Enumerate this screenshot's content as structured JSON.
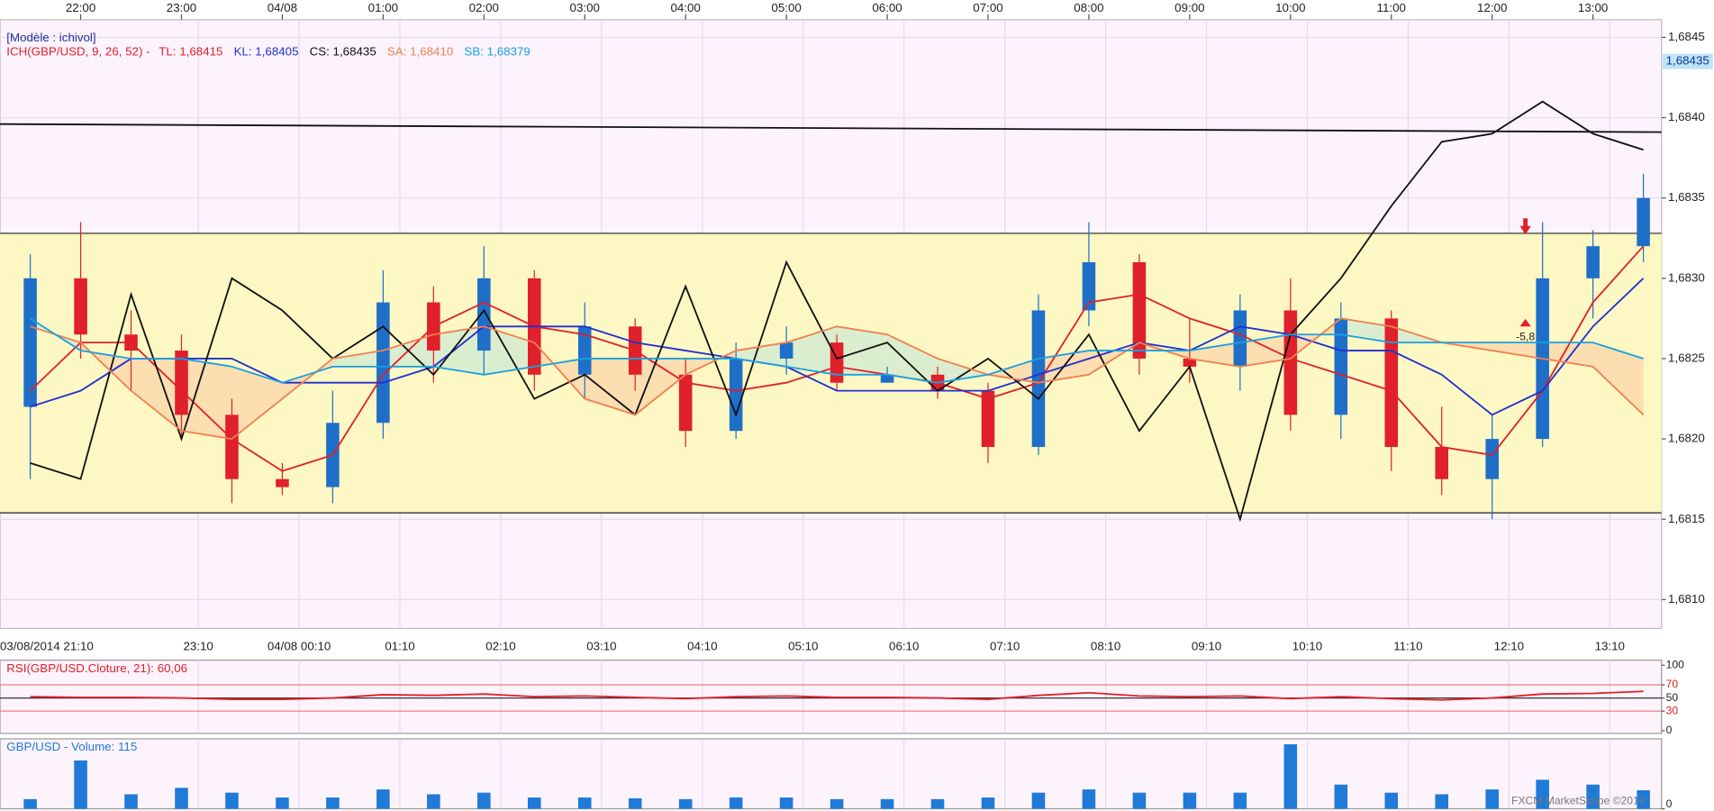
{
  "chart_data": [
    {
      "type": "candlestick",
      "model_label": "[Modèle : ichivol]",
      "title": "ICH(GBP/USD, 9, 26, 52) -",
      "watermark": "FXCM MarketScope ©2014",
      "x": [
        21.5,
        22,
        22.5,
        23,
        23.5,
        24,
        24.5,
        25,
        25.5,
        26,
        26.5,
        27,
        27.5,
        28,
        28.5,
        29,
        29.5,
        30,
        30.5,
        31,
        31.5,
        32,
        32.5,
        33,
        33.5,
        34,
        34.5,
        35,
        35.5,
        36,
        36.5,
        37,
        37.5
      ],
      "xlim": [
        21.2,
        37.68
      ],
      "ylim": [
        1.68082,
        1.68461
      ],
      "up_color": "#1f6fc8",
      "down_color": "#e0202a",
      "ohlc": [
        [
          1.6822,
          1.68315,
          1.68175,
          1.683
        ],
        [
          1.683,
          1.68335,
          1.6825,
          1.68265
        ],
        [
          1.68265,
          1.6828,
          1.6823,
          1.68255
        ],
        [
          1.68255,
          1.68265,
          1.682,
          1.68215
        ],
        [
          1.68215,
          1.68225,
          1.6816,
          1.68175
        ],
        [
          1.68175,
          1.68185,
          1.68165,
          1.6817
        ],
        [
          1.6817,
          1.6823,
          1.6816,
          1.6821
        ],
        [
          1.6821,
          1.68305,
          1.682,
          1.68285
        ],
        [
          1.68285,
          1.68295,
          1.68235,
          1.68255
        ],
        [
          1.68255,
          1.6832,
          1.6824,
          1.683
        ],
        [
          1.683,
          1.68305,
          1.6823,
          1.6824
        ],
        [
          1.6824,
          1.68285,
          1.68225,
          1.6827
        ],
        [
          1.6827,
          1.68275,
          1.6823,
          1.6824
        ],
        [
          1.6824,
          1.6825,
          1.68195,
          1.68205
        ],
        [
          1.68205,
          1.6826,
          1.682,
          1.6825
        ],
        [
          1.6825,
          1.6827,
          1.6824,
          1.6826
        ],
        [
          1.6826,
          1.68265,
          1.6823,
          1.68235
        ],
        [
          1.68235,
          1.68245,
          1.68235,
          1.6824
        ],
        [
          1.6824,
          1.68245,
          1.68225,
          1.6823
        ],
        [
          1.6823,
          1.68235,
          1.68185,
          1.68195
        ],
        [
          1.68195,
          1.6829,
          1.6819,
          1.6828
        ],
        [
          1.6828,
          1.68335,
          1.6827,
          1.6831
        ],
        [
          1.6831,
          1.68315,
          1.6824,
          1.6825
        ],
        [
          1.6825,
          1.68275,
          1.68235,
          1.68245
        ],
        [
          1.68245,
          1.6829,
          1.6823,
          1.6828
        ],
        [
          1.6828,
          1.683,
          1.68205,
          1.68215
        ],
        [
          1.68215,
          1.68285,
          1.682,
          1.68275
        ],
        [
          1.68275,
          1.6828,
          1.6818,
          1.68195
        ],
        [
          1.68195,
          1.6822,
          1.68165,
          1.68175
        ],
        [
          1.68175,
          1.68215,
          1.6815,
          1.682
        ],
        [
          1.682,
          1.68335,
          1.68195,
          1.683
        ],
        [
          1.683,
          1.6833,
          1.68275,
          1.6832
        ],
        [
          1.6832,
          1.68365,
          1.6831,
          1.6835
        ]
      ],
      "series": [
        {
          "name": "TL: 1,68415",
          "color": "#e0202a",
          "values": [
            1.6823,
            1.6826,
            1.6826,
            1.6823,
            1.682,
            1.6818,
            1.6819,
            1.6824,
            1.6827,
            1.68285,
            1.6827,
            1.68265,
            1.68255,
            1.68235,
            1.6823,
            1.68235,
            1.68245,
            1.6824,
            1.68235,
            1.68225,
            1.68235,
            1.68285,
            1.6829,
            1.68275,
            1.68265,
            1.6825,
            1.6824,
            1.6823,
            1.68195,
            1.6819,
            1.6823,
            1.68285,
            1.6832
          ]
        },
        {
          "name": "KL: 1,68405",
          "color": "#2030d0",
          "values": [
            1.6822,
            1.6823,
            1.6825,
            1.6825,
            1.6825,
            1.68235,
            1.68235,
            1.68235,
            1.68245,
            1.6827,
            1.6827,
            1.6827,
            1.6826,
            1.68255,
            1.6825,
            1.68245,
            1.6823,
            1.6823,
            1.6823,
            1.6823,
            1.6824,
            1.6825,
            1.6826,
            1.68255,
            1.6827,
            1.68265,
            1.68255,
            1.68255,
            1.6824,
            1.68215,
            1.6823,
            1.6827,
            1.683
          ]
        },
        {
          "name": "CS: 1,68435",
          "color": "#111111",
          "values": [
            1.68185,
            1.68175,
            1.6829,
            1.682,
            1.683,
            1.6828,
            1.6825,
            1.6827,
            1.6824,
            1.6828,
            1.68225,
            1.6824,
            1.68215,
            1.68295,
            1.68215,
            1.6831,
            1.6825,
            1.6826,
            1.6823,
            1.6825,
            1.68225,
            1.68265,
            1.68205,
            1.68245,
            1.6815,
            1.68265,
            1.683,
            1.68345,
            1.68385,
            1.6839,
            1.6841,
            1.6839,
            1.6838
          ]
        },
        {
          "name": "SA: 1,68410",
          "color": "#f08050",
          "values": [
            1.6827,
            1.6826,
            1.6823,
            1.68205,
            1.682,
            1.68225,
            1.6825,
            1.68255,
            1.68265,
            1.6827,
            1.6826,
            1.68225,
            1.68215,
            1.6824,
            1.68255,
            1.6826,
            1.6827,
            1.68265,
            1.6825,
            1.6824,
            1.68235,
            1.6824,
            1.6826,
            1.6825,
            1.68245,
            1.6825,
            1.68275,
            1.6827,
            1.6826,
            1.68255,
            1.6825,
            1.68245,
            1.68215
          ]
        },
        {
          "name": "SB: 1,68379",
          "color": "#1aa0e0",
          "values": [
            1.68275,
            1.68255,
            1.6825,
            1.6825,
            1.68245,
            1.68235,
            1.68245,
            1.68245,
            1.68245,
            1.6824,
            1.68245,
            1.6825,
            1.6825,
            1.6825,
            1.6825,
            1.68245,
            1.6824,
            1.6824,
            1.68235,
            1.6824,
            1.6825,
            1.68255,
            1.68255,
            1.68255,
            1.6826,
            1.68265,
            1.68265,
            1.6826,
            1.6826,
            1.6826,
            1.6826,
            1.6826,
            1.6825
          ]
        }
      ],
      "band": [
        1.68328,
        1.68154
      ],
      "band_color": "#fdf7c3",
      "trend_line": {
        "x": [
          21.2,
          37.68
        ],
        "values": [
          1.68396,
          1.68391
        ]
      },
      "last_price": {
        "value": 1.68435,
        "label": "1,68435"
      },
      "annotations": [
        {
          "x": 36.33,
          "y": 1.6827,
          "text": "-5,8"
        }
      ],
      "yticks": [
        {
          "value": 1.681,
          "label": "1,6810"
        },
        {
          "value": 1.6815,
          "label": "1,6815"
        },
        {
          "value": 1.682,
          "label": "1,6820"
        },
        {
          "value": 1.6825,
          "label": "1,6825"
        },
        {
          "value": 1.683,
          "label": "1,6830"
        },
        {
          "value": 1.6835,
          "label": "1,6835"
        },
        {
          "value": 1.684,
          "label": "1,6840"
        },
        {
          "value": 1.6845,
          "label": "1,6845"
        }
      ],
      "xticks_top": [
        {
          "value": 22,
          "label": "22:00"
        },
        {
          "value": 23,
          "label": "23:00"
        },
        {
          "value": 24,
          "label": "04/08"
        },
        {
          "value": 25,
          "label": "01:00"
        },
        {
          "value": 26,
          "label": "02:00"
        },
        {
          "value": 27,
          "label": "03:00"
        },
        {
          "value": 28,
          "label": "04:00"
        },
        {
          "value": 29,
          "label": "05:00"
        },
        {
          "value": 30,
          "label": "06:00"
        },
        {
          "value": 31,
          "label": "07:00"
        },
        {
          "value": 32,
          "label": "08:00"
        },
        {
          "value": 33,
          "label": "09:00"
        },
        {
          "value": 34,
          "label": "10:00"
        },
        {
          "value": 35,
          "label": "11:00"
        },
        {
          "value": 36,
          "label": "12:00"
        },
        {
          "value": 37,
          "label": "13:00"
        }
      ],
      "xticks": [
        {
          "value": 21.1667,
          "label": "03/08/2014 21:10"
        },
        {
          "value": 23.1667,
          "label": "23:10"
        },
        {
          "value": 24.1667,
          "label": "04/08 00:10"
        },
        {
          "value": 25.1667,
          "label": "01:10"
        },
        {
          "value": 26.1667,
          "label": "02:10"
        },
        {
          "value": 27.1667,
          "label": "03:10"
        },
        {
          "value": 28.1667,
          "label": "04:10"
        },
        {
          "value": 29.1667,
          "label": "05:10"
        },
        {
          "value": 30.1667,
          "label": "06:10"
        },
        {
          "value": 31.1667,
          "label": "07:10"
        },
        {
          "value": 32.1667,
          "label": "08:10"
        },
        {
          "value": 33.1667,
          "label": "09:10"
        },
        {
          "value": 34.1667,
          "label": "10:10"
        },
        {
          "value": 35.1667,
          "label": "11:10"
        },
        {
          "value": 36.1667,
          "label": "12:10"
        },
        {
          "value": 37.1667,
          "label": "13:10"
        }
      ],
      "grid": true
    },
    {
      "type": "line",
      "title": "RSI(GBP/USD.Cloture, 21): 60,06",
      "color": "#e0202a",
      "values": [
        52,
        51,
        51,
        50,
        48,
        48,
        50,
        55,
        54,
        56,
        52,
        53,
        51,
        49,
        52,
        53,
        51,
        51,
        50,
        48,
        54,
        58,
        53,
        52,
        53,
        49,
        52,
        49,
        47,
        50,
        56,
        57,
        60.06
      ],
      "ylim": [
        -4,
        106
      ],
      "yticks": [
        0,
        30,
        50,
        70,
        100
      ],
      "levels": [
        30,
        50,
        70
      ]
    },
    {
      "type": "bar",
      "title": "GBP/USD - Volume: 115",
      "color": "#1f7ad8",
      "values": [
        60,
        300,
        90,
        130,
        100,
        70,
        70,
        120,
        90,
        100,
        70,
        70,
        65,
        60,
        70,
        70,
        60,
        60,
        60,
        70,
        100,
        120,
        100,
        100,
        100,
        400,
        150,
        100,
        90,
        120,
        180,
        150,
        115
      ],
      "ylim": [
        0,
        420
      ],
      "yticks": [
        0
      ]
    }
  ]
}
